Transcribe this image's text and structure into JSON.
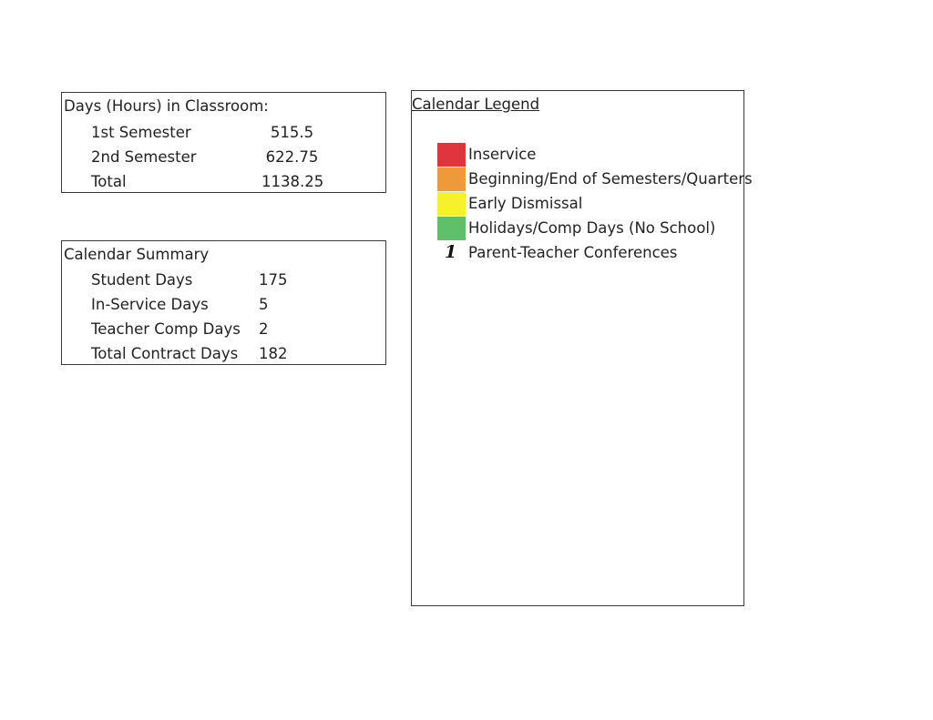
{
  "hours": {
    "title": "Days (Hours) in Classroom:",
    "rows": [
      {
        "label": "1st Semester",
        "value": "515.5"
      },
      {
        "label": "2nd Semester",
        "value": "622.75"
      },
      {
        "label": "Total",
        "value": "1138.25"
      }
    ]
  },
  "summary": {
    "title": "Calendar Summary",
    "rows": [
      {
        "label": "Student Days",
        "value": "175"
      },
      {
        "label": "In-Service Days",
        "value": "5"
      },
      {
        "label": "Teacher Comp Days",
        "value": "2"
      },
      {
        "label": "Total Contract Days",
        "value": "182"
      }
    ]
  },
  "legend": {
    "title": "Calendar Legend",
    "items": [
      {
        "label": "Inservice",
        "color": "#e0343e"
      },
      {
        "label": "Beginning/End of Semesters/Quarters",
        "color": "#ee9a3a"
      },
      {
        "label": "Early Dismissal",
        "color": "#f5f12a"
      },
      {
        "label": "Holidays/Comp Days (No School)",
        "color": "#5fc069"
      },
      {
        "label": "Parent-Teacher Conferences",
        "symbol": "1"
      }
    ]
  }
}
